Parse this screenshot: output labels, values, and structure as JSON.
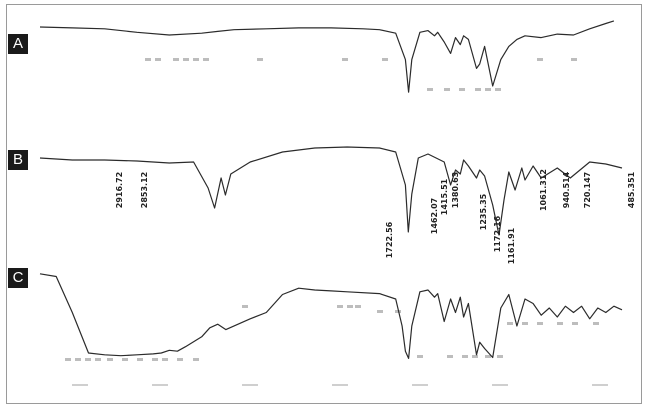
{
  "figure": {
    "footer_text": ""
  },
  "chart_data": [
    {
      "type": "line",
      "panel_label": "A",
      "x_unit": "wavenumber (cm-1), axis reversed",
      "xlim": [
        4000,
        400
      ],
      "series": [
        {
          "x": [
            4000,
            3800,
            3600,
            3400,
            3200,
            3000,
            2900,
            2800,
            2600,
            2400,
            2200,
            2000,
            1900,
            1800,
            1740,
            1720,
            1700,
            1650,
            1600,
            1560,
            1540,
            1500,
            1460,
            1430,
            1400,
            1380,
            1350,
            1300,
            1280,
            1250,
            1200,
            1150,
            1100,
            1050,
            1000,
            900,
            800,
            700,
            600,
            500,
            450
          ],
          "y": [
            0.92,
            0.91,
            0.9,
            0.86,
            0.83,
            0.85,
            0.87,
            0.89,
            0.9,
            0.91,
            0.91,
            0.9,
            0.89,
            0.85,
            0.55,
            0.18,
            0.55,
            0.86,
            0.88,
            0.82,
            0.86,
            0.75,
            0.62,
            0.8,
            0.72,
            0.82,
            0.78,
            0.45,
            0.5,
            0.7,
            0.25,
            0.55,
            0.7,
            0.78,
            0.82,
            0.8,
            0.84,
            0.83,
            0.9,
            0.96,
            0.99
          ]
        }
      ],
      "peak_labels": []
    },
    {
      "type": "line",
      "panel_label": "B",
      "x_unit": "wavenumber (cm-1), axis reversed",
      "xlim": [
        4000,
        400
      ],
      "series": [
        {
          "x": [
            4000,
            3800,
            3600,
            3400,
            3200,
            3050,
            2960,
            2920,
            2880,
            2853,
            2820,
            2700,
            2500,
            2300,
            2100,
            1900,
            1800,
            1740,
            1722,
            1700,
            1660,
            1600,
            1500,
            1460,
            1430,
            1400,
            1380,
            1350,
            1300,
            1280,
            1250,
            1200,
            1170,
            1161,
            1130,
            1100,
            1061,
            1020,
            1000,
            950,
            900,
            800,
            720,
            600,
            500,
            400
          ],
          "y": [
            0.82,
            0.8,
            0.8,
            0.79,
            0.77,
            0.78,
            0.52,
            0.32,
            0.62,
            0.45,
            0.66,
            0.78,
            0.88,
            0.92,
            0.93,
            0.92,
            0.88,
            0.55,
            0.08,
            0.46,
            0.82,
            0.86,
            0.78,
            0.55,
            0.7,
            0.66,
            0.8,
            0.74,
            0.62,
            0.7,
            0.64,
            0.35,
            0.12,
            0.05,
            0.4,
            0.68,
            0.5,
            0.72,
            0.6,
            0.74,
            0.62,
            0.72,
            0.62,
            0.78,
            0.76,
            0.72
          ]
        }
      ],
      "peak_labels": [
        "2916.72",
        "2853.12",
        "1722.56",
        "1462.07",
        "1415.51",
        "1380.63",
        "1235.35",
        "1172.16",
        "1161.91",
        "1061.312",
        "940.514",
        "720.147",
        "485.351"
      ]
    },
    {
      "type": "line",
      "panel_label": "C",
      "x_unit": "wavenumber (cm-1), axis reversed",
      "xlim": [
        4000,
        400
      ],
      "series": [
        {
          "x": [
            4000,
            3900,
            3800,
            3700,
            3600,
            3500,
            3400,
            3300,
            3250,
            3200,
            3150,
            3100,
            3000,
            2950,
            2900,
            2850,
            2700,
            2600,
            2500,
            2400,
            2300,
            2200,
            2100,
            1900,
            1800,
            1760,
            1740,
            1720,
            1700,
            1650,
            1600,
            1560,
            1540,
            1500,
            1460,
            1430,
            1400,
            1380,
            1350,
            1300,
            1280,
            1250,
            1200,
            1150,
            1100,
            1050,
            1000,
            950,
            900,
            850,
            800,
            750,
            700,
            650,
            600,
            550,
            500,
            450,
            400
          ],
          "y": [
            0.98,
            0.95,
            0.55,
            0.1,
            0.08,
            0.07,
            0.08,
            0.09,
            0.1,
            0.13,
            0.12,
            0.17,
            0.28,
            0.38,
            0.42,
            0.36,
            0.48,
            0.55,
            0.75,
            0.82,
            0.8,
            0.79,
            0.78,
            0.76,
            0.7,
            0.4,
            0.12,
            0.04,
            0.4,
            0.78,
            0.8,
            0.72,
            0.76,
            0.45,
            0.7,
            0.55,
            0.72,
            0.5,
            0.65,
            0.08,
            0.22,
            0.15,
            0.05,
            0.6,
            0.75,
            0.4,
            0.7,
            0.65,
            0.52,
            0.6,
            0.5,
            0.62,
            0.55,
            0.62,
            0.48,
            0.6,
            0.55,
            0.62,
            0.58
          ]
        }
      ],
      "peak_labels": []
    }
  ]
}
